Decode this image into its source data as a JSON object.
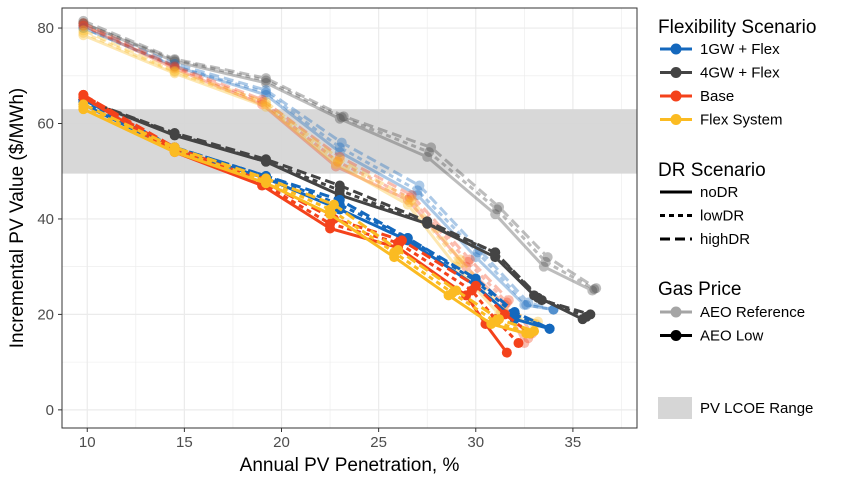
{
  "chart_data": {
    "type": "line",
    "title": "",
    "xlabel": "Annual PV Penetration, %",
    "ylabel": "Incremental PV Value ($/MWh)",
    "xlim": [
      8.7,
      38.3
    ],
    "ylim": [
      -3.8,
      84.2
    ],
    "xticks": [
      10,
      15,
      20,
      25,
      30,
      35
    ],
    "yticks": [
      0,
      20,
      40,
      60,
      80
    ],
    "grid": true,
    "legend_placement": "right",
    "band": {
      "name": "PV LCOE Range",
      "y0": 49.5,
      "y1": 63,
      "color": "#d6d6d6"
    },
    "legends": {
      "flex_title": "Flexibility Scenario",
      "dr_title": "DR Scenario",
      "gas_title": "Gas Price",
      "band_label": "PV LCOE Range"
    },
    "flex_scenarios": [
      {
        "name": "1GW + Flex",
        "color": "#1468bd"
      },
      {
        "name": "4GW + Flex",
        "color": "#444444"
      },
      {
        "name": "Base",
        "color": "#f4421b"
      },
      {
        "name": "Flex System",
        "color": "#fbbb22"
      }
    ],
    "dr_scenarios": [
      {
        "name": "noDR",
        "dash": "solid"
      },
      {
        "name": "lowDR",
        "dash": "short-dash"
      },
      {
        "name": "highDR",
        "dash": "long-dash"
      }
    ],
    "gas_prices": [
      {
        "name": "AEO Reference",
        "opacity": 0.35
      },
      {
        "name": "AEO Low",
        "opacity": 1
      }
    ],
    "series": [
      {
        "flex": "4GW + Flex",
        "dr": "noDR",
        "gas": "AEO Reference",
        "x": [
          9.8,
          14.5,
          19.2,
          23,
          27.5,
          31,
          33.5,
          36
        ],
        "y": [
          81,
          73,
          68.5,
          61,
          53,
          41,
          30,
          25
        ]
      },
      {
        "flex": "4GW + Flex",
        "dr": "lowDR",
        "gas": "AEO Reference",
        "x": [
          9.8,
          14.5,
          19.2,
          23.1,
          27.6,
          31.1,
          33.6,
          36.1
        ],
        "y": [
          81,
          73.3,
          69,
          61.3,
          54,
          42,
          31,
          25.3
        ]
      },
      {
        "flex": "4GW + Flex",
        "dr": "highDR",
        "gas": "AEO Reference",
        "x": [
          9.8,
          14.5,
          19.2,
          23.2,
          27.7,
          31.2,
          33.7,
          36.2
        ],
        "y": [
          81.5,
          73.5,
          69.5,
          61.5,
          55,
          42.5,
          32,
          25.5
        ]
      },
      {
        "flex": "1GW + Flex",
        "dr": "noDR",
        "gas": "AEO Reference",
        "x": [
          9.8,
          14.5,
          19.2,
          23,
          27,
          30,
          32.5,
          34
        ],
        "y": [
          80,
          72,
          66,
          54,
          45,
          32,
          22,
          21
        ]
      },
      {
        "flex": "1GW + Flex",
        "dr": "lowDR",
        "gas": "AEO Reference",
        "x": [
          9.8,
          14.5,
          19.2,
          23,
          27,
          30.1,
          32.6,
          34
        ],
        "y": [
          80,
          72,
          66.5,
          55,
          46,
          33,
          22,
          21
        ]
      },
      {
        "flex": "1GW + Flex",
        "dr": "highDR",
        "gas": "AEO Reference",
        "x": [
          9.8,
          14.5,
          19.2,
          23.1,
          27.1,
          30.2,
          32.7,
          34
        ],
        "y": [
          80.5,
          72.5,
          67,
          56,
          47,
          33.5,
          22.5,
          21
        ]
      },
      {
        "flex": "Base",
        "dr": "noDR",
        "gas": "AEO Reference",
        "x": [
          9.8,
          14.5,
          19,
          22.8,
          26.5,
          29.5,
          31.5,
          32.5
        ],
        "y": [
          80.5,
          71.5,
          64,
          51,
          44,
          30,
          22,
          14
        ]
      },
      {
        "flex": "Base",
        "dr": "lowDR",
        "gas": "AEO Reference",
        "x": [
          9.8,
          14.5,
          19,
          22.9,
          26.6,
          29.6,
          31.6,
          32.7
        ],
        "y": [
          80.5,
          71.8,
          64.5,
          52,
          44.5,
          31,
          22.5,
          15
        ]
      },
      {
        "flex": "Base",
        "dr": "highDR",
        "gas": "AEO Reference",
        "x": [
          9.8,
          14.5,
          19,
          23,
          26.7,
          29.7,
          31.7,
          32.9
        ],
        "y": [
          81,
          72,
          65,
          53,
          45,
          31.5,
          23,
          16
        ]
      },
      {
        "flex": "Flex System",
        "dr": "noDR",
        "gas": "AEO Reference",
        "x": [
          9.8,
          14.5,
          19.2,
          22.8,
          26.5,
          29,
          31.2,
          33
        ],
        "y": [
          78.5,
          70.5,
          63.5,
          51.5,
          43,
          30,
          20,
          18
        ]
      },
      {
        "flex": "Flex System",
        "dr": "lowDR",
        "gas": "AEO Reference",
        "x": [
          9.8,
          14.5,
          19.2,
          22.9,
          26.6,
          29.1,
          31.3,
          33.1
        ],
        "y": [
          79,
          70.8,
          64,
          52,
          43.5,
          31,
          20.5,
          18
        ]
      },
      {
        "flex": "Flex System",
        "dr": "highDR",
        "gas": "AEO Reference",
        "x": [
          9.8,
          14.5,
          19.2,
          23,
          26.7,
          29.2,
          31.4,
          33.2
        ],
        "y": [
          79.5,
          71,
          64.5,
          52.5,
          44,
          31.5,
          21,
          18.5
        ]
      },
      {
        "flex": "4GW + Flex",
        "dr": "noDR",
        "gas": "AEO Low",
        "x": [
          9.8,
          14.5,
          19.2,
          23,
          27.5,
          31,
          33,
          35.5
        ],
        "y": [
          65,
          57.5,
          52,
          45,
          39,
          32,
          24,
          19
        ]
      },
      {
        "flex": "4GW + Flex",
        "dr": "lowDR",
        "gas": "AEO Low",
        "x": [
          9.8,
          14.5,
          19.2,
          23,
          27.5,
          31,
          33.2,
          35.7
        ],
        "y": [
          65,
          57.8,
          52,
          46,
          39,
          33,
          23.5,
          19.5
        ]
      },
      {
        "flex": "4GW + Flex",
        "dr": "highDR",
        "gas": "AEO Low",
        "x": [
          9.8,
          14.5,
          19.2,
          23,
          27.5,
          31,
          33.4,
          35.9
        ],
        "y": [
          65,
          58,
          52.5,
          47,
          39.5,
          33,
          23,
          20
        ]
      },
      {
        "flex": "1GW + Flex",
        "dr": "noDR",
        "gas": "AEO Low",
        "x": [
          9.8,
          14.5,
          19.2,
          23,
          26.5,
          30,
          32,
          33.8
        ],
        "y": [
          64,
          54.5,
          48.5,
          42,
          35.5,
          26,
          19,
          17
        ]
      },
      {
        "flex": "1GW + Flex",
        "dr": "lowDR",
        "gas": "AEO Low",
        "x": [
          9.8,
          14.5,
          19.2,
          23,
          26.5,
          30,
          32,
          33.8
        ],
        "y": [
          64.5,
          55,
          49,
          43,
          36,
          27,
          20,
          17
        ]
      },
      {
        "flex": "1GW + Flex",
        "dr": "highDR",
        "gas": "AEO Low",
        "x": [
          9.8,
          14.5,
          19.2,
          23,
          26.5,
          30,
          32,
          33.8
        ],
        "y": [
          65,
          55,
          49,
          44,
          36,
          27.5,
          20.5,
          17
        ]
      },
      {
        "flex": "Base",
        "dr": "noDR",
        "gas": "AEO Low",
        "x": [
          9.8,
          14.5,
          19,
          22.5,
          26,
          29.5,
          30.5,
          31.6
        ],
        "y": [
          65.5,
          54,
          47,
          38,
          34,
          24,
          18,
          12
        ]
      },
      {
        "flex": "Base",
        "dr": "lowDR",
        "gas": "AEO Low",
        "x": [
          9.8,
          14.5,
          19,
          22.5,
          26,
          29.8,
          31,
          32.2
        ],
        "y": [
          66,
          54.5,
          47.5,
          39,
          35,
          25,
          19,
          14
        ]
      },
      {
        "flex": "Base",
        "dr": "highDR",
        "gas": "AEO Low",
        "x": [
          9.8,
          14.5,
          19,
          22.7,
          26.2,
          30,
          31.5,
          32.8
        ],
        "y": [
          66,
          55,
          48,
          40,
          35.5,
          26,
          20,
          16
        ]
      },
      {
        "flex": "Flex System",
        "dr": "noDR",
        "gas": "AEO Low",
        "x": [
          9.8,
          14.5,
          19.2,
          22.5,
          25.8,
          28.6,
          30.8,
          32.6
        ],
        "y": [
          63,
          54,
          47.5,
          41,
          32,
          24,
          18,
          16
        ]
      },
      {
        "flex": "Flex System",
        "dr": "lowDR",
        "gas": "AEO Low",
        "x": [
          9.8,
          14.5,
          19.2,
          22.5,
          25.8,
          28.8,
          31,
          32.8
        ],
        "y": [
          63.5,
          54.5,
          48,
          42,
          33,
          24.5,
          18.5,
          16
        ]
      },
      {
        "flex": "Flex System",
        "dr": "highDR",
        "gas": "AEO Low",
        "x": [
          9.8,
          14.5,
          19.2,
          22.7,
          26,
          29,
          31.2,
          33
        ],
        "y": [
          64,
          55,
          48.5,
          43,
          33.5,
          25,
          19,
          16.5
        ]
      }
    ]
  }
}
